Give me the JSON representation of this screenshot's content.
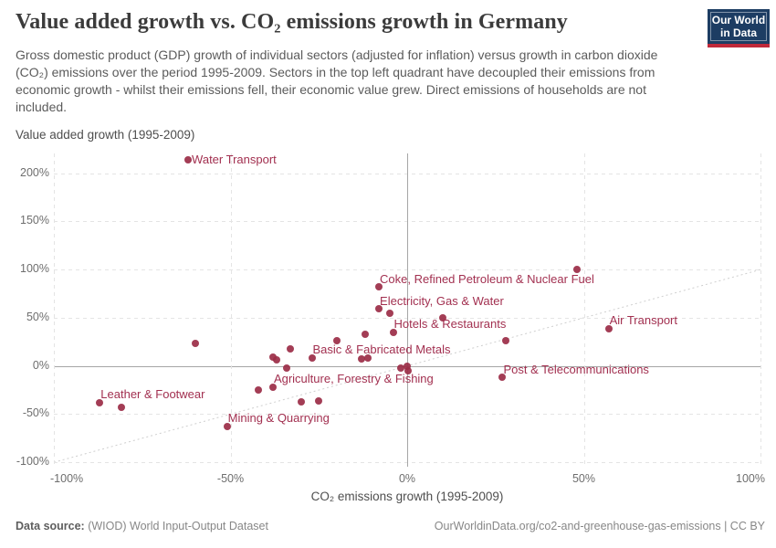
{
  "header": {
    "title": "Value added growth vs. CO₂ emissions growth in Germany",
    "subtitle": "Gross domestic product (GDP) growth of individual sectors (adjusted for inflation) versus growth in carbon dioxide (CO₂) emissions over the period 1995-2009. Sectors in the top left quadrant have decoupled their emissions from economic growth - whilst their emissions fell, their economic value grew. Direct emissions of households are not included.",
    "logo": {
      "line1": "Our World",
      "line2": "in Data",
      "bg_color": "#1d3d63",
      "bar_color": "#c0293a"
    }
  },
  "footer": {
    "source_label": "Data source:",
    "source_text": " (WIOD) World Input-Output Dataset",
    "right_text": "OurWorldinData.org/co2-and-greenhouse-gas-emissions | CC BY"
  },
  "chart_data": {
    "type": "scatter",
    "title": "Value added growth vs. CO₂ emissions growth in Germany",
    "xlabel": "CO₂ emissions growth (1995-2009)",
    "ylabel": "Value added growth (1995-2009)",
    "xlim": [
      -100,
      100
    ],
    "ylim": [
      -100,
      220
    ],
    "x_ticks": [
      -100,
      -50,
      0,
      50,
      100
    ],
    "y_ticks": [
      200,
      150,
      100,
      50,
      0,
      -50,
      -100
    ],
    "tick_suffix": "%",
    "grid": true,
    "identity_line": true,
    "point_color": "#9b2c46",
    "label_color": "#a23050",
    "points": [
      {
        "x": -62,
        "y": 214,
        "label": "Water Transport",
        "label_pos": "right"
      },
      {
        "x": 48,
        "y": 100
      },
      {
        "x": -8,
        "y": 82,
        "label": "Coke, Refined Petroleum & Nuclear Fuel"
      },
      {
        "x": -8,
        "y": 59,
        "label": "Electricity, Gas & Water"
      },
      {
        "x": -5,
        "y": 55
      },
      {
        "x": 10,
        "y": 50
      },
      {
        "x": -4,
        "y": 35,
        "label": "Hotels & Restaurants"
      },
      {
        "x": 57,
        "y": 39,
        "label": "Air Transport"
      },
      {
        "x": -12,
        "y": 33
      },
      {
        "x": -20,
        "y": 26
      },
      {
        "x": 28,
        "y": 26.5
      },
      {
        "x": -60,
        "y": 23.5
      },
      {
        "x": -33,
        "y": 18
      },
      {
        "x": -38,
        "y": 9.5
      },
      {
        "x": -37,
        "y": 6
      },
      {
        "x": -27,
        "y": 8.5,
        "label": "Basic & Fabricated Metals"
      },
      {
        "x": -13,
        "y": 7
      },
      {
        "x": -11,
        "y": 8.5
      },
      {
        "x": -34,
        "y": -2
      },
      {
        "x": -1.7,
        "y": -2
      },
      {
        "x": -0.1,
        "y": -0.5
      },
      {
        "x": 0.2,
        "y": -5
      },
      {
        "x": -38,
        "y": -22,
        "label": "Agriculture, Forestry & Fishing"
      },
      {
        "x": -42,
        "y": -25
      },
      {
        "x": -30,
        "y": -37
      },
      {
        "x": -25,
        "y": -36.5
      },
      {
        "x": -87,
        "y": -38,
        "label": "Leather & Footwear"
      },
      {
        "x": -81,
        "y": -43,
        "label": ""
      },
      {
        "x": -51,
        "y": -62.5,
        "label": "Mining & Quarrying"
      },
      {
        "x": 27,
        "y": -12,
        "label": "Post & Telecommunications"
      }
    ]
  }
}
